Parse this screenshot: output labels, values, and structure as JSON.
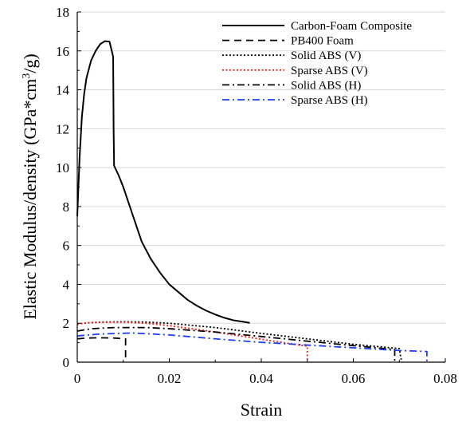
{
  "chart_data": {
    "type": "line",
    "xlabel": "Strain",
    "ylabel_main": "Elastic Modulus/density (GPa*cm",
    "ylabel_sup": "3",
    "ylabel_tail": "/g)",
    "xlim": [
      0,
      0.08
    ],
    "ylim": [
      0,
      18
    ],
    "xticks": [
      0,
      0.02,
      0.04,
      0.06,
      0.08
    ],
    "xtick_labels": [
      "0",
      "0.02",
      "0.04",
      "0.06",
      "0.08"
    ],
    "yticks": [
      0,
      2,
      4,
      6,
      8,
      10,
      12,
      14,
      16,
      18
    ],
    "ytick_labels": [
      "0",
      "2",
      "4",
      "6",
      "8",
      "10",
      "12",
      "14",
      "16",
      "18"
    ],
    "grid": "horizontal",
    "legend_position": "top-right",
    "series": [
      {
        "name": "Carbon-Foam Composite",
        "color": "#000000",
        "style": "solid",
        "points": [
          [
            0,
            7.5
          ],
          [
            0.0005,
            10.5
          ],
          [
            0.001,
            12.6
          ],
          [
            0.0015,
            13.8
          ],
          [
            0.002,
            14.6
          ],
          [
            0.003,
            15.5
          ],
          [
            0.004,
            16.0
          ],
          [
            0.005,
            16.35
          ],
          [
            0.006,
            16.5
          ],
          [
            0.007,
            16.48
          ],
          [
            0.0075,
            16.0
          ],
          [
            0.0078,
            15.7
          ],
          [
            0.0079,
            12.0
          ],
          [
            0.008,
            10.1
          ],
          [
            0.009,
            9.6
          ],
          [
            0.01,
            9.0
          ],
          [
            0.012,
            7.6
          ],
          [
            0.014,
            6.2
          ],
          [
            0.016,
            5.3
          ],
          [
            0.018,
            4.6
          ],
          [
            0.02,
            4.0
          ],
          [
            0.022,
            3.6
          ],
          [
            0.024,
            3.2
          ],
          [
            0.026,
            2.9
          ],
          [
            0.028,
            2.65
          ],
          [
            0.03,
            2.45
          ],
          [
            0.032,
            2.28
          ],
          [
            0.034,
            2.15
          ],
          [
            0.036,
            2.08
          ],
          [
            0.0375,
            2.02
          ]
        ]
      },
      {
        "name": "PB400 Foam",
        "color": "#000000",
        "style": "dashed",
        "points": [
          [
            0,
            1.2
          ],
          [
            0.002,
            1.24
          ],
          [
            0.004,
            1.25
          ],
          [
            0.006,
            1.25
          ],
          [
            0.008,
            1.24
          ],
          [
            0.0105,
            1.2
          ],
          [
            0.0105,
            0
          ]
        ]
      },
      {
        "name": "Solid ABS (V)",
        "color": "#000000",
        "style": "dotted",
        "points": [
          [
            0,
            1.95
          ],
          [
            0.002,
            2.02
          ],
          [
            0.005,
            2.06
          ],
          [
            0.01,
            2.08
          ],
          [
            0.015,
            2.06
          ],
          [
            0.02,
            2.0
          ],
          [
            0.03,
            1.78
          ],
          [
            0.04,
            1.48
          ],
          [
            0.05,
            1.2
          ],
          [
            0.06,
            0.92
          ],
          [
            0.07,
            0.7
          ],
          [
            0.0705,
            0
          ]
        ]
      },
      {
        "name": "Sparse ABS (V)",
        "color": "#e8201c",
        "style": "dotted",
        "points": [
          [
            0,
            1.95
          ],
          [
            0.002,
            2.02
          ],
          [
            0.005,
            2.05
          ],
          [
            0.01,
            2.06
          ],
          [
            0.015,
            2.0
          ],
          [
            0.02,
            1.88
          ],
          [
            0.03,
            1.55
          ],
          [
            0.04,
            1.18
          ],
          [
            0.05,
            0.82
          ],
          [
            0.05,
            0
          ]
        ]
      },
      {
        "name": "Solid ABS (H)",
        "color": "#000000",
        "style": "dashdot",
        "points": [
          [
            0,
            1.6
          ],
          [
            0.003,
            1.72
          ],
          [
            0.008,
            1.78
          ],
          [
            0.015,
            1.78
          ],
          [
            0.02,
            1.72
          ],
          [
            0.03,
            1.55
          ],
          [
            0.04,
            1.32
          ],
          [
            0.05,
            1.08
          ],
          [
            0.06,
            0.85
          ],
          [
            0.069,
            0.65
          ],
          [
            0.069,
            0
          ]
        ]
      },
      {
        "name": "Sparse ABS (H)",
        "color": "#1f3cf0",
        "style": "dashdot",
        "points": [
          [
            0,
            1.35
          ],
          [
            0.005,
            1.45
          ],
          [
            0.012,
            1.5
          ],
          [
            0.02,
            1.4
          ],
          [
            0.03,
            1.2
          ],
          [
            0.04,
            1.02
          ],
          [
            0.05,
            0.88
          ],
          [
            0.06,
            0.74
          ],
          [
            0.07,
            0.6
          ],
          [
            0.076,
            0.55
          ],
          [
            0.076,
            0
          ]
        ]
      }
    ]
  }
}
